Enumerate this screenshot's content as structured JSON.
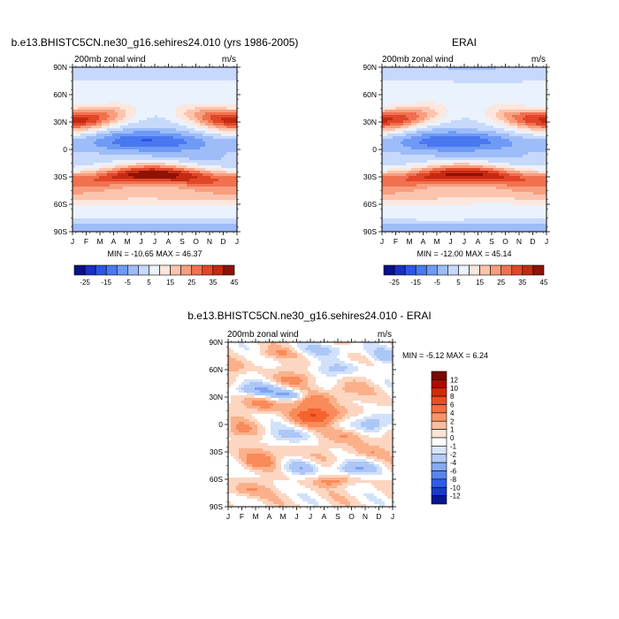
{
  "chart_data": [
    {
      "type": "heatmap",
      "title": "b.e13.BHISTC5CN.ne30_g16.sehires24.010 (yrs 1986-2005)",
      "subtitle_left": "200mb zonal wind",
      "subtitle_right": "m/s",
      "x_ticks": [
        "J",
        "F",
        "M",
        "A",
        "M",
        "J",
        "J",
        "A",
        "S",
        "O",
        "N",
        "D",
        "J"
      ],
      "y_ticks": [
        "90N",
        "60N",
        "30N",
        "0",
        "30S",
        "60S",
        "90S"
      ],
      "min": -10.65,
      "max": 46.37,
      "stats_text": "MIN = -10.65 MAX =  46.37",
      "colorbar_labels": [
        "-25",
        "-15",
        "-5",
        "5",
        "15",
        "25",
        "35",
        "45"
      ],
      "colorbar_orientation": "horizontal",
      "field": "model"
    },
    {
      "type": "heatmap",
      "title": "ERAI",
      "subtitle_left": "200mb zonal wind",
      "subtitle_right": "m/s",
      "x_ticks": [
        "J",
        "F",
        "M",
        "A",
        "M",
        "J",
        "J",
        "A",
        "S",
        "O",
        "N",
        "D",
        "J"
      ],
      "y_ticks": [
        "90N",
        "60N",
        "30N",
        "0",
        "30S",
        "60S",
        "90S"
      ],
      "min": -12.0,
      "max": 45.14,
      "stats_text": "MIN = -12.00 MAX =  45.14",
      "colorbar_labels": [
        "-25",
        "-15",
        "-5",
        "5",
        "15",
        "25",
        "35",
        "45"
      ],
      "colorbar_orientation": "horizontal",
      "field": "erai"
    },
    {
      "type": "heatmap",
      "title": "b.e13.BHISTC5CN.ne30_g16.sehires24.010 - ERAI",
      "subtitle_left": "200mb zonal wind",
      "subtitle_right": "m/s",
      "x_ticks": [
        "J",
        "F",
        "M",
        "A",
        "M",
        "J",
        "J",
        "A",
        "S",
        "O",
        "N",
        "D",
        "J"
      ],
      "y_ticks": [
        "90N",
        "60N",
        "30N",
        "0",
        "30S",
        "60S",
        "90S"
      ],
      "min": -5.12,
      "max": 6.24,
      "stats_text": "MIN =  -5.12 MAX =   6.24",
      "colorbar_labels": [
        "12",
        "10",
        "8",
        "6",
        "4",
        "2",
        "1",
        "0",
        "-1",
        "-2",
        "-4",
        "-6",
        "-8",
        "-10",
        "-12"
      ],
      "colorbar_orientation": "vertical",
      "field": "diff"
    }
  ],
  "colors": {
    "abs_levels": [
      "#08108a",
      "#1a2fc4",
      "#2e55e6",
      "#4a78f0",
      "#6f9af5",
      "#9dbcf8",
      "#c7d9fb",
      "#eaf2fd",
      "#fde6dc",
      "#fcc4ad",
      "#f79e7f",
      "#f07150",
      "#e24628",
      "#c42a12",
      "#8e1206"
    ],
    "diff_levels": [
      "#8e0b00",
      "#c51a00",
      "#e83e16",
      "#f5622f",
      "#f98a5a",
      "#fbb089",
      "#fcd6c1",
      "#ffffff",
      "#d2e1fb",
      "#acc6f6",
      "#7fa2f2",
      "#4f7bef",
      "#2c58e6",
      "#1535c2",
      "#07188c"
    ]
  }
}
